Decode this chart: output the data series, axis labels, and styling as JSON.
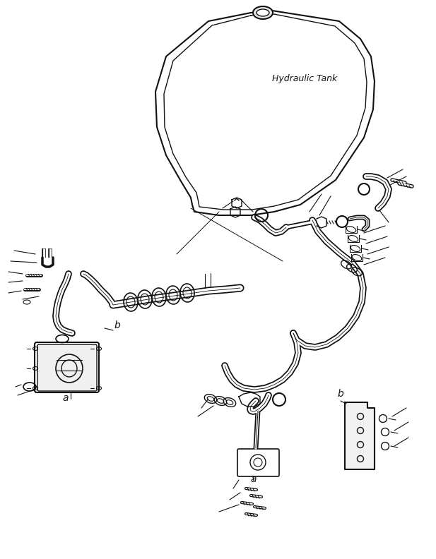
{
  "background_color": "#ffffff",
  "line_color": "#111111",
  "hydraulic_tank_label": "Hydraulic Tank",
  "label_a1": "a",
  "label_b1": "b",
  "label_a2": "a",
  "label_b2": "b",
  "figsize": [
    6.17,
    7.92
  ],
  "dpi": 100
}
